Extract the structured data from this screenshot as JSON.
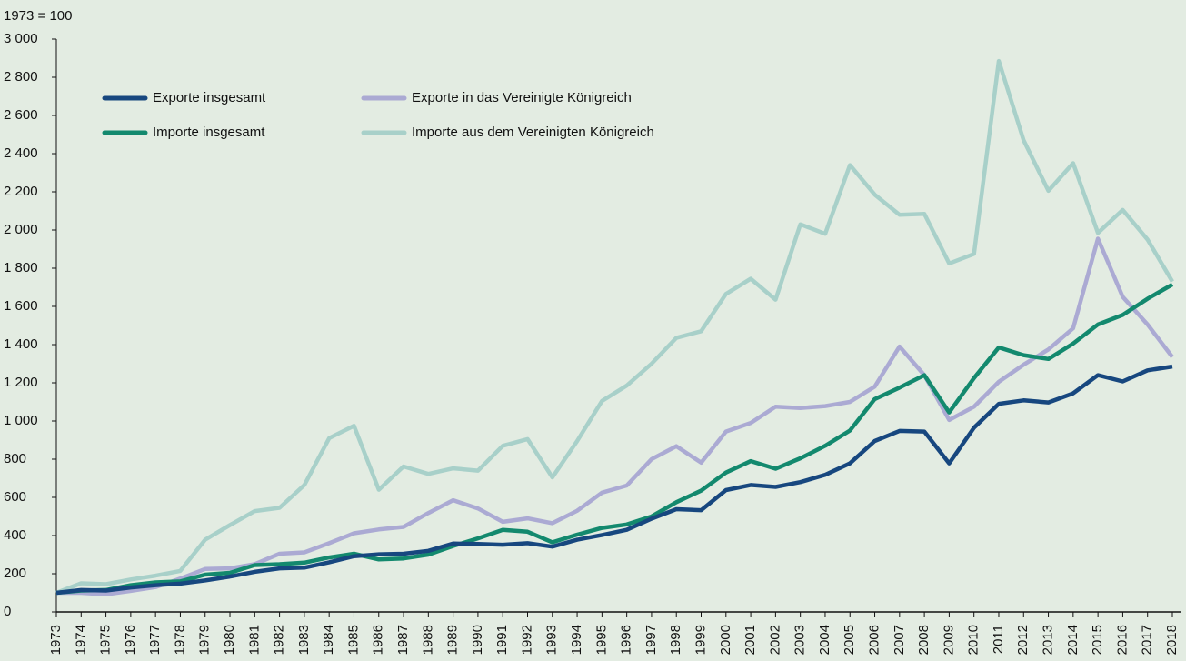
{
  "chart_data": {
    "type": "line",
    "y_label": "1973 = 100",
    "categories": [
      "1973",
      "1974",
      "1975",
      "1976",
      "1977",
      "1978",
      "1979",
      "1980",
      "1981",
      "1982",
      "1983",
      "1984",
      "1985",
      "1986",
      "1987",
      "1988",
      "1989",
      "1990",
      "1991",
      "1992",
      "1993",
      "1994",
      "1995",
      "1996",
      "1997",
      "1998",
      "1999",
      "2000",
      "2001",
      "2002",
      "2003",
      "2004",
      "2005",
      "2006",
      "2007",
      "2008",
      "2009",
      "2010",
      "2011",
      "2012",
      "2013",
      "2014",
      "2015",
      "2016",
      "2017",
      "2018"
    ],
    "series": [
      {
        "name": "Importe aus dem Vereinigten Königreich",
        "color": "#a8d0c9",
        "values": [
          100,
          150,
          145,
          170,
          190,
          215,
          378,
          455,
          528,
          545,
          665,
          910,
          975,
          640,
          762,
          723,
          752,
          740,
          870,
          905,
          705,
          895,
          1105,
          1185,
          1300,
          1435,
          1470,
          1665,
          1745,
          1635,
          2030,
          1980,
          2340,
          2185,
          2080,
          2085,
          1825,
          1875,
          2885,
          2470,
          2205,
          2350,
          1985,
          2105,
          1950,
          1730
        ]
      },
      {
        "name": "Exporte in das Vereinigte Königreich",
        "color": "#abaad3",
        "values": [
          100,
          100,
          92,
          110,
          130,
          175,
          225,
          228,
          250,
          305,
          312,
          360,
          412,
          432,
          445,
          518,
          585,
          542,
          472,
          490,
          465,
          530,
          625,
          662,
          800,
          868,
          782,
          945,
          990,
          1075,
          1068,
          1078,
          1100,
          1180,
          1390,
          1240,
          1005,
          1075,
          1205,
          1295,
          1375,
          1485,
          1955,
          1650,
          1505,
          1335
        ]
      },
      {
        "name": "Importe insgesamt",
        "color": "#13896e",
        "values": [
          100,
          112,
          115,
          140,
          155,
          160,
          195,
          205,
          245,
          250,
          258,
          285,
          305,
          275,
          280,
          300,
          345,
          385,
          430,
          420,
          365,
          405,
          440,
          458,
          500,
          575,
          635,
          730,
          790,
          750,
          805,
          870,
          950,
          1115,
          1175,
          1240,
          1045,
          1225,
          1385,
          1345,
          1325,
          1405,
          1505,
          1555,
          1640,
          1715
        ]
      },
      {
        "name": "Exporte insgesamt",
        "color": "#17477f",
        "values": [
          100,
          115,
          112,
          128,
          140,
          148,
          165,
          185,
          210,
          228,
          232,
          260,
          292,
          302,
          305,
          320,
          358,
          356,
          352,
          360,
          342,
          378,
          403,
          430,
          488,
          538,
          533,
          638,
          665,
          655,
          680,
          718,
          778,
          895,
          948,
          945,
          778,
          965,
          1090,
          1108,
          1097,
          1145,
          1240,
          1207,
          1265,
          1285
        ]
      }
    ],
    "ylim": [
      0,
      3000
    ],
    "yticks": [
      0,
      200,
      400,
      600,
      800,
      {
        "value": 1000,
        "label": "1 000"
      },
      {
        "value": 1200,
        "label": "1 200"
      },
      {
        "value": 1400,
        "label": "1 400"
      },
      {
        "value": 1600,
        "label": "1 600"
      },
      {
        "value": 1800,
        "label": "1 800"
      },
      {
        "value": 2000,
        "label": "2 000"
      },
      {
        "value": 2200,
        "label": "2 200"
      },
      {
        "value": 2400,
        "label": "2 400"
      },
      {
        "value": 2600,
        "label": "2 600"
      },
      {
        "value": 2800,
        "label": "2 800"
      },
      {
        "value": 3000,
        "label": "3 000"
      }
    ],
    "legend": "upper left",
    "grid": false
  }
}
